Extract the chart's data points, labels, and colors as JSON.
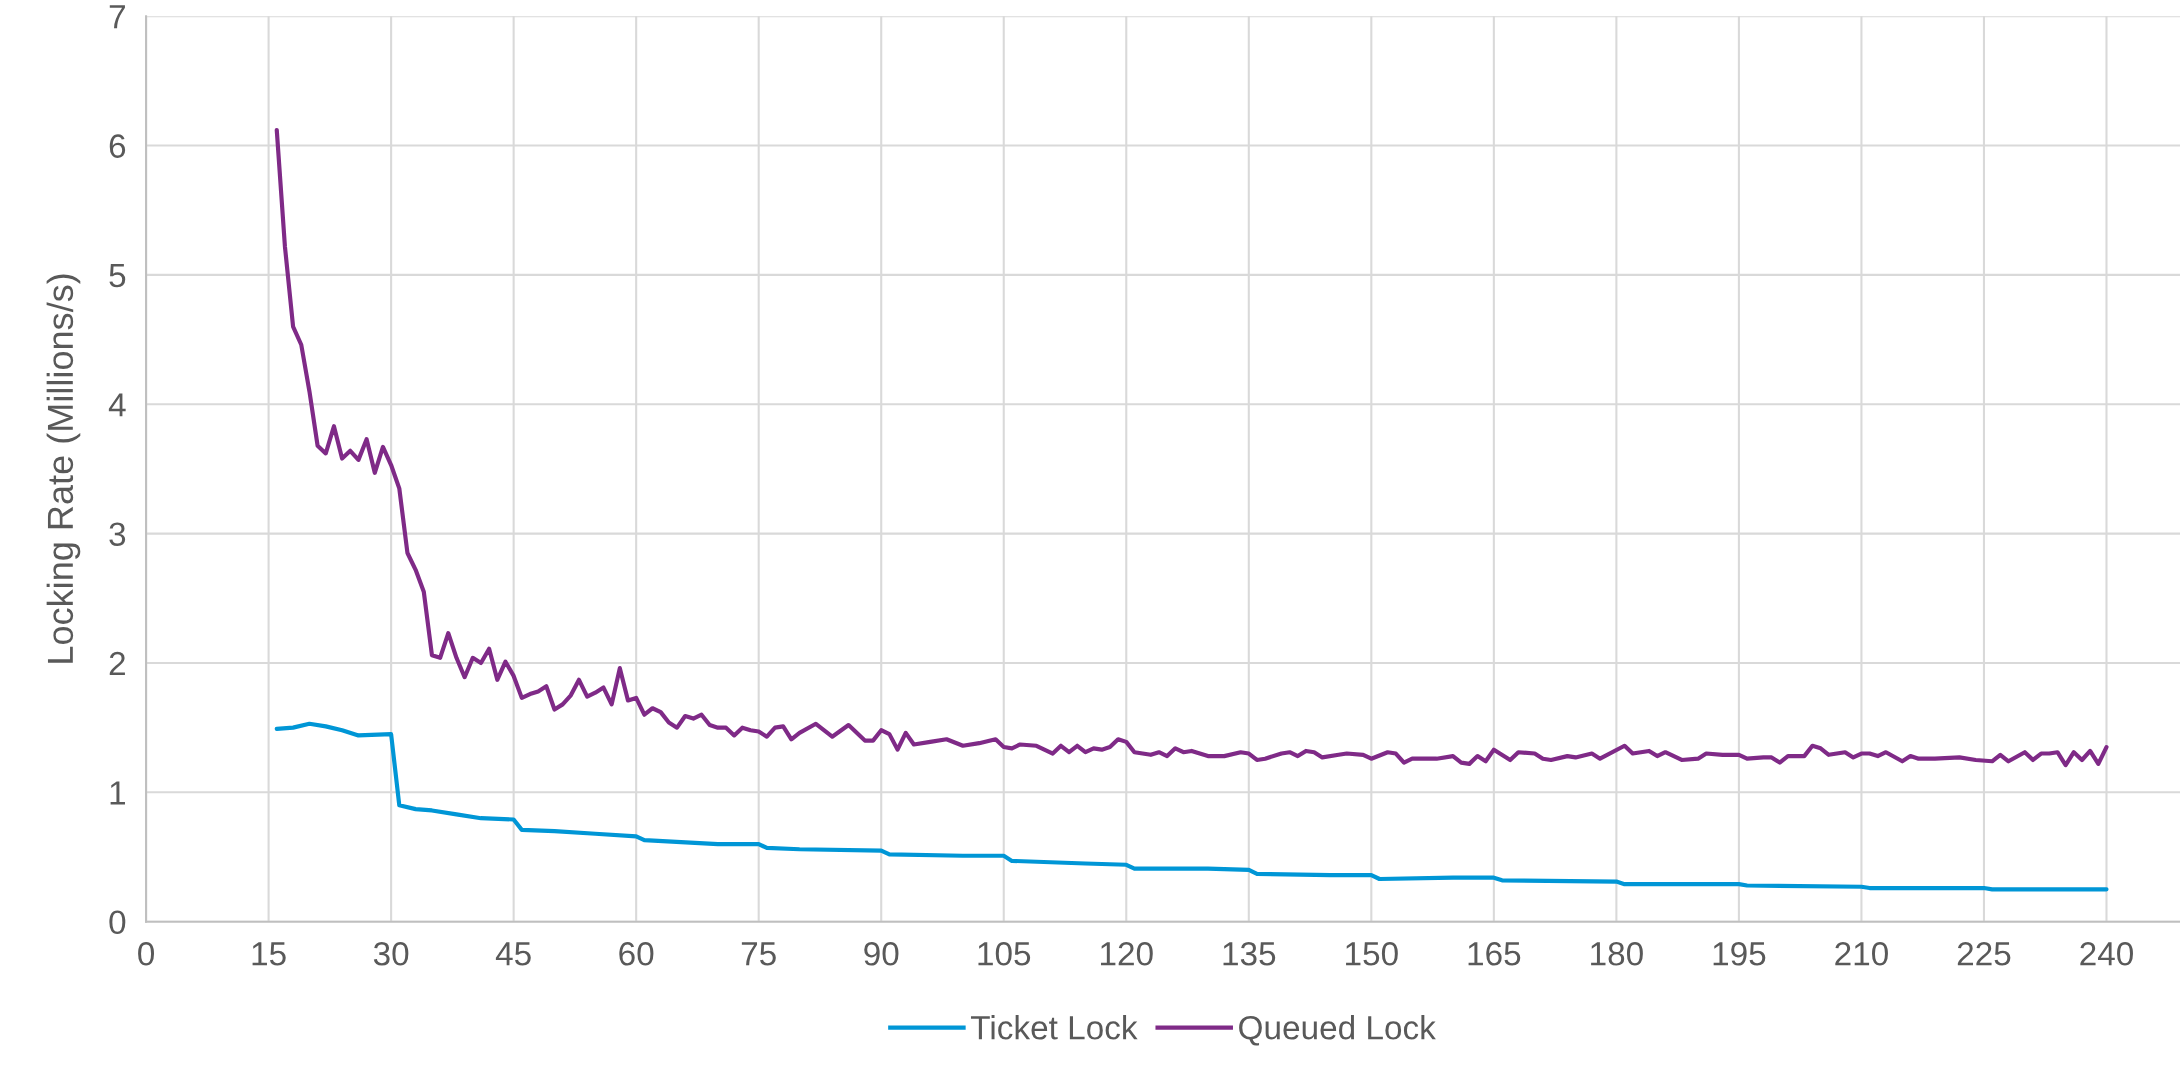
{
  "chart_data": {
    "type": "line",
    "ylabel": "Locking Rate (Millions/s)",
    "xlim": [
      0,
      249
    ],
    "xticks": [
      0,
      15,
      30,
      45,
      60,
      75,
      90,
      105,
      120,
      135,
      150,
      165,
      180,
      195,
      210,
      225,
      240
    ],
    "ylim": [
      0,
      7
    ],
    "yticks": [
      0,
      1,
      2,
      3,
      4,
      5,
      6,
      7
    ],
    "grid": true,
    "legend": "bottom",
    "marker": "none",
    "line_style": "solid",
    "series": [
      {
        "name": "Ticket Lock",
        "color": "#0096d6",
        "x": [
          16,
          18,
          20,
          22,
          24,
          26,
          30,
          31,
          33,
          35,
          38,
          41,
          45,
          46,
          50,
          55,
          60,
          61,
          70,
          75,
          76,
          80,
          90,
          91,
          100,
          105,
          106,
          115,
          120,
          121,
          130,
          135,
          136,
          145,
          150,
          151,
          160,
          165,
          166,
          180,
          181,
          195,
          196,
          210,
          211,
          225,
          226,
          240
        ],
        "values": [
          1.49,
          1.5,
          1.53,
          1.51,
          1.48,
          1.44,
          1.45,
          0.9,
          0.87,
          0.86,
          0.83,
          0.8,
          0.79,
          0.71,
          0.7,
          0.68,
          0.66,
          0.63,
          0.6,
          0.6,
          0.57,
          0.56,
          0.55,
          0.52,
          0.51,
          0.51,
          0.47,
          0.45,
          0.44,
          0.41,
          0.41,
          0.4,
          0.37,
          0.36,
          0.36,
          0.33,
          0.34,
          0.34,
          0.32,
          0.31,
          0.29,
          0.29,
          0.28,
          0.27,
          0.26,
          0.26,
          0.25,
          0.25
        ]
      },
      {
        "name": "Queued Lock",
        "color": "#7f2a87",
        "x": [
          16,
          17,
          18,
          19,
          20,
          21,
          22,
          23,
          24,
          25,
          26,
          27,
          28,
          29,
          30,
          31,
          32,
          33,
          34,
          35,
          36,
          37,
          38,
          39,
          40,
          41,
          42,
          43,
          44,
          45,
          46,
          47,
          48,
          49,
          50,
          51,
          52,
          53,
          54,
          55,
          56,
          57,
          58,
          59,
          60,
          61,
          62,
          63,
          64,
          65,
          66,
          67,
          68,
          69,
          70,
          71,
          72,
          73,
          74,
          75,
          76,
          77,
          78,
          79,
          80,
          82,
          84,
          86,
          88,
          89,
          90,
          91,
          92,
          93,
          94,
          96,
          98,
          100,
          102,
          104,
          105,
          106,
          107,
          109,
          111,
          112,
          113,
          114,
          115,
          116,
          117,
          118,
          119,
          120,
          121,
          123,
          124,
          125,
          126,
          127,
          128,
          130,
          132,
          134,
          135,
          136,
          137,
          139,
          140,
          141,
          142,
          143,
          144,
          146,
          147,
          149,
          150,
          152,
          153,
          154,
          155,
          158,
          160,
          161,
          162,
          163,
          164,
          165,
          167,
          168,
          170,
          171,
          172,
          174,
          175,
          177,
          178,
          181,
          182,
          184,
          185,
          186,
          188,
          190,
          191,
          193,
          195,
          196,
          198,
          199,
          200,
          201,
          203,
          204,
          205,
          206,
          208,
          209,
          210,
          211,
          212,
          213,
          215,
          216,
          217,
          219,
          222,
          224,
          226,
          227,
          228,
          230,
          231,
          232,
          233,
          234,
          235,
          236,
          237,
          238,
          239,
          240
        ],
        "values": [
          6.12,
          5.22,
          4.6,
          4.46,
          4.1,
          3.68,
          3.62,
          3.83,
          3.58,
          3.64,
          3.57,
          3.73,
          3.47,
          3.67,
          3.53,
          3.35,
          2.85,
          2.72,
          2.55,
          2.06,
          2.04,
          2.23,
          2.04,
          1.89,
          2.04,
          2.0,
          2.11,
          1.87,
          2.01,
          1.9,
          1.73,
          1.76,
          1.78,
          1.82,
          1.64,
          1.68,
          1.75,
          1.87,
          1.74,
          1.77,
          1.81,
          1.68,
          1.96,
          1.71,
          1.73,
          1.6,
          1.65,
          1.62,
          1.54,
          1.5,
          1.59,
          1.57,
          1.6,
          1.52,
          1.5,
          1.5,
          1.44,
          1.5,
          1.48,
          1.47,
          1.43,
          1.5,
          1.51,
          1.41,
          1.46,
          1.53,
          1.43,
          1.52,
          1.4,
          1.4,
          1.48,
          1.45,
          1.33,
          1.46,
          1.37,
          1.39,
          1.41,
          1.36,
          1.38,
          1.41,
          1.35,
          1.34,
          1.37,
          1.36,
          1.3,
          1.36,
          1.31,
          1.36,
          1.31,
          1.34,
          1.33,
          1.35,
          1.41,
          1.39,
          1.31,
          1.29,
          1.31,
          1.28,
          1.34,
          1.31,
          1.32,
          1.28,
          1.28,
          1.31,
          1.3,
          1.25,
          1.26,
          1.3,
          1.31,
          1.28,
          1.32,
          1.31,
          1.27,
          1.29,
          1.3,
          1.29,
          1.26,
          1.31,
          1.3,
          1.23,
          1.26,
          1.26,
          1.28,
          1.23,
          1.22,
          1.28,
          1.24,
          1.33,
          1.25,
          1.31,
          1.3,
          1.26,
          1.25,
          1.28,
          1.27,
          1.3,
          1.26,
          1.36,
          1.3,
          1.32,
          1.28,
          1.31,
          1.25,
          1.26,
          1.3,
          1.29,
          1.29,
          1.26,
          1.27,
          1.27,
          1.23,
          1.28,
          1.28,
          1.36,
          1.34,
          1.29,
          1.31,
          1.27,
          1.3,
          1.3,
          1.28,
          1.31,
          1.24,
          1.28,
          1.26,
          1.26,
          1.27,
          1.25,
          1.24,
          1.29,
          1.24,
          1.31,
          1.25,
          1.3,
          1.3,
          1.31,
          1.21,
          1.31,
          1.25,
          1.32,
          1.22,
          1.35
        ]
      }
    ]
  }
}
